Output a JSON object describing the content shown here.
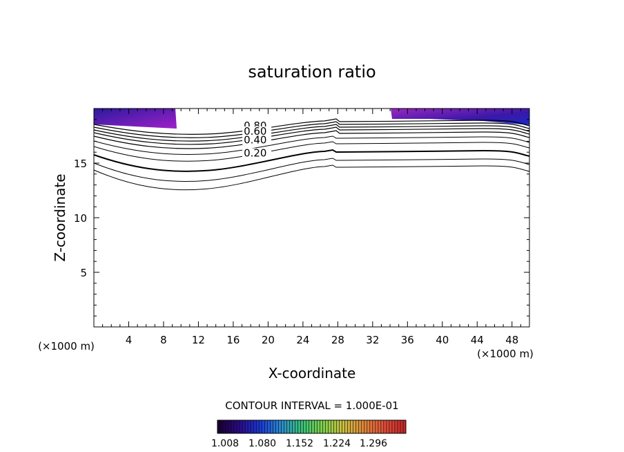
{
  "chart_data": {
    "type": "contour",
    "title": "saturation ratio",
    "xlabel": "X-coordinate",
    "ylabel": "Z-coordinate",
    "x_unit_label_left": "(×1000 m)",
    "x_unit_label_right": "(×1000 m)",
    "xlim": [
      0,
      50
    ],
    "ylim": [
      0,
      20
    ],
    "x_ticks": [
      4,
      8,
      12,
      16,
      20,
      24,
      28,
      32,
      36,
      40,
      44,
      48
    ],
    "y_ticks": [
      5,
      10,
      15
    ],
    "contour_interval_text": "CONTOUR INTERVAL = 1.000E-01",
    "contour_labels": [
      {
        "text": "0.80",
        "x": 17.2,
        "z": 18.1
      },
      {
        "text": "0.60",
        "x": 17.2,
        "z": 17.6
      },
      {
        "text": "0.40",
        "x": 17.2,
        "z": 16.8
      },
      {
        "text": "0.20",
        "x": 17.2,
        "z": 15.6
      }
    ],
    "filled_regions": [
      {
        "label": "left-top",
        "x_range": [
          0,
          9.5
        ],
        "z_range": [
          18.2,
          20
        ]
      },
      {
        "label": "right-top",
        "x_range": [
          34,
          50
        ],
        "z_range": [
          18.4,
          20
        ]
      }
    ],
    "colorbar": {
      "tick_labels": [
        "1.008",
        "1.080",
        "1.152",
        "1.224",
        "1.296"
      ],
      "colors": [
        "#1a0033",
        "#2b0a8a",
        "#1a3ad6",
        "#2a8ad0",
        "#37c07a",
        "#7ad04a",
        "#c8c040",
        "#e08a3a",
        "#e0503a",
        "#c82828"
      ]
    }
  }
}
